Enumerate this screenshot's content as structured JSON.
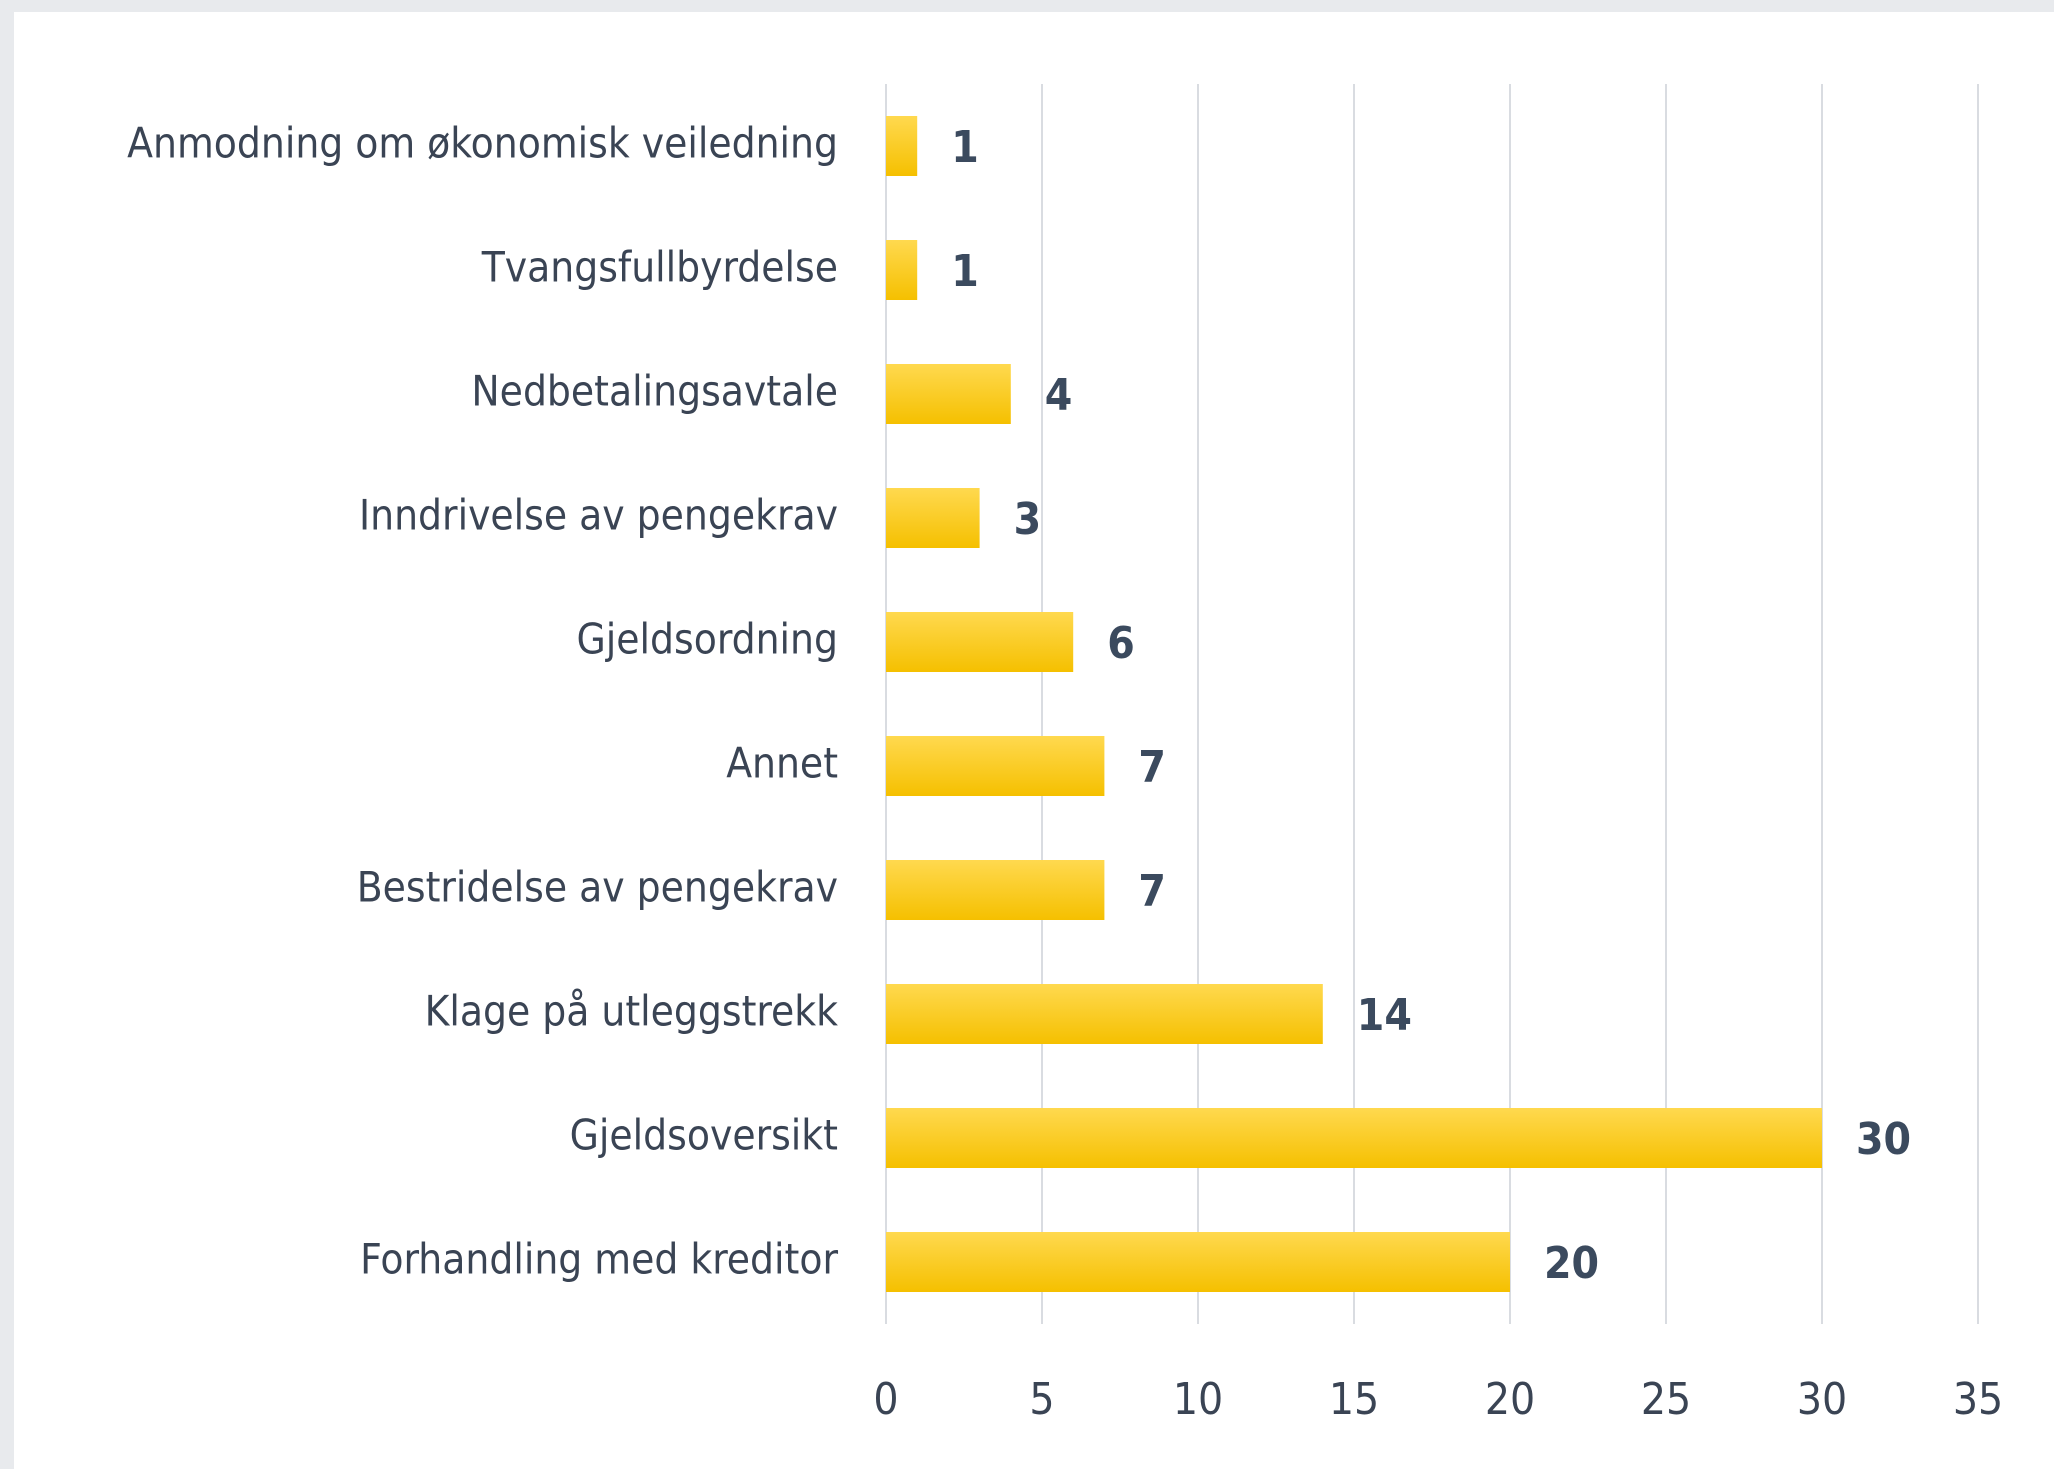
{
  "chart_data": {
    "type": "barh",
    "categories": [
      "Anmodning om økonomisk veiledning",
      "Tvangsfullbyrdelse",
      "Nedbetalingsavtale",
      "Inndrivelse av pengekrav",
      "Gjeldsordning",
      "Annet",
      "Bestridelse av pengekrav",
      "Klage på utleggstrekk",
      "Gjeldsoversikt",
      "Forhandling med kreditor"
    ],
    "values": [
      1,
      1,
      4,
      3,
      6,
      7,
      7,
      14,
      30,
      20
    ],
    "color": "#f5c000",
    "xlim": [
      0,
      35
    ],
    "xticks": [
      0,
      5,
      10,
      15,
      20,
      25,
      30,
      35
    ],
    "grid": true
  }
}
